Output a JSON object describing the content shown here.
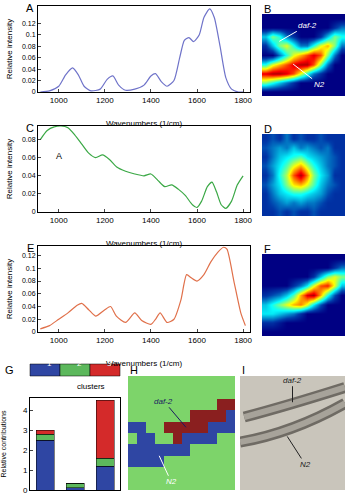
{
  "chart_data": [
    {
      "type": "line",
      "title": "A",
      "color": "#6f73c9",
      "x": [
        920,
        960,
        1000,
        1030,
        1060,
        1085,
        1110,
        1140,
        1180,
        1210,
        1235,
        1260,
        1290,
        1330,
        1370,
        1400,
        1420,
        1445,
        1470,
        1500,
        1525,
        1545,
        1565,
        1585,
        1610,
        1630,
        1655,
        1675,
        1700,
        1725,
        1750,
        1780,
        1800
      ],
      "values": [
        0,
        0.002,
        0.01,
        0.03,
        0.042,
        0.03,
        0.01,
        0.002,
        0.005,
        0.022,
        0.028,
        0.012,
        0.003,
        0.005,
        0.012,
        0.028,
        0.032,
        0.018,
        0.01,
        0.02,
        0.06,
        0.09,
        0.095,
        0.088,
        0.1,
        0.13,
        0.145,
        0.13,
        0.08,
        0.025,
        0.005,
        0,
        0
      ],
      "xlabel": "Wavenumbers (1/cm)",
      "ylabel": "Relative intensity",
      "xlim": [
        910,
        1830
      ],
      "ylim": [
        0,
        0.15
      ],
      "xticks": [
        1000,
        1200,
        1400,
        1600,
        1800
      ],
      "yticks": [
        0,
        0.02,
        0.04,
        0.06,
        0.08,
        0.1,
        0.12
      ],
      "grid": false
    },
    {
      "type": "heatmap",
      "title": "B",
      "tick_labels": false,
      "zlim": [
        0,
        1
      ],
      "labels": [
        "daf-2",
        "N2"
      ],
      "z": [
        [
          0,
          0,
          0,
          0,
          0,
          0,
          0,
          0,
          0,
          0,
          0,
          0
        ],
        [
          0,
          0,
          0,
          0,
          0,
          0,
          0,
          0,
          0,
          0,
          0.1,
          0.2
        ],
        [
          0.3,
          0.5,
          0.4,
          0.2,
          0.1,
          0,
          0,
          0,
          0.1,
          0.3,
          0.5,
          0.4
        ],
        [
          0.1,
          0.3,
          0.5,
          0.6,
          0.4,
          0.2,
          0.2,
          0.4,
          0.6,
          0.7,
          0.5,
          0.2
        ],
        [
          0,
          0,
          0.2,
          0.4,
          0.6,
          0.7,
          0.8,
          0.9,
          0.8,
          0.5,
          0.2,
          0
        ],
        [
          0.4,
          0.6,
          0.7,
          0.8,
          0.9,
          0.95,
          0.95,
          0.8,
          0.5,
          0.2,
          0,
          0
        ],
        [
          0.9,
          0.95,
          0.95,
          0.9,
          0.8,
          0.6,
          0.4,
          0.2,
          0.1,
          0,
          0,
          0
        ],
        [
          0.5,
          0.4,
          0.3,
          0.2,
          0.1,
          0,
          0,
          0,
          0,
          0,
          0,
          0
        ],
        [
          0,
          0,
          0,
          0,
          0,
          0,
          0,
          0,
          0,
          0,
          0,
          0
        ]
      ]
    },
    {
      "type": "line",
      "title": "C",
      "color": "#3aa845",
      "x": [
        920,
        950,
        980,
        1010,
        1040,
        1070,
        1100,
        1130,
        1160,
        1190,
        1220,
        1250,
        1290,
        1330,
        1370,
        1400,
        1430,
        1460,
        1490,
        1520,
        1550,
        1580,
        1600,
        1620,
        1645,
        1665,
        1685,
        1705,
        1725,
        1750,
        1775,
        1800
      ],
      "values": [
        0.08,
        0.09,
        0.094,
        0.095,
        0.093,
        0.085,
        0.075,
        0.065,
        0.06,
        0.063,
        0.058,
        0.05,
        0.045,
        0.042,
        0.04,
        0.042,
        0.035,
        0.028,
        0.03,
        0.025,
        0.018,
        0.008,
        0.005,
        0.012,
        0.028,
        0.033,
        0.022,
        0.008,
        0.004,
        0.012,
        0.03,
        0.04
      ],
      "xlabel": "Wavenumbers (1/cm)",
      "ylabel": "Relative intensity",
      "xlim": [
        910,
        1830
      ],
      "ylim": [
        0,
        0.095
      ],
      "xticks": [
        1000,
        1200,
        1400,
        1600,
        1800
      ],
      "yticks": [
        0,
        0.02,
        0.04,
        0.06,
        0.08
      ],
      "grid": false,
      "annotations": [
        {
          "text": "A",
          "x": 1000,
          "y": 0.062
        }
      ]
    },
    {
      "type": "heatmap",
      "title": "D",
      "tick_labels": false,
      "zlim": [
        0,
        1
      ],
      "z": [
        [
          0.1,
          0.15,
          0.1,
          0.2,
          0.1,
          0.15,
          0.1,
          0.1,
          0.15,
          0.1,
          0.1,
          0.1
        ],
        [
          0.15,
          0.2,
          0.25,
          0.2,
          0.3,
          0.2,
          0.25,
          0.2,
          0.15,
          0.2,
          0.1,
          0.1
        ],
        [
          0.1,
          0.2,
          0.3,
          0.35,
          0.4,
          0.45,
          0.35,
          0.3,
          0.25,
          0.2,
          0.15,
          0.1
        ],
        [
          0.15,
          0.25,
          0.35,
          0.45,
          0.6,
          0.7,
          0.55,
          0.4,
          0.3,
          0.2,
          0.15,
          0.1
        ],
        [
          0.1,
          0.2,
          0.4,
          0.55,
          0.8,
          0.95,
          0.75,
          0.5,
          0.35,
          0.25,
          0.1,
          0.1
        ],
        [
          0.15,
          0.25,
          0.35,
          0.5,
          0.65,
          0.7,
          0.6,
          0.45,
          0.3,
          0.2,
          0.15,
          0.1
        ],
        [
          0.1,
          0.2,
          0.3,
          0.35,
          0.4,
          0.4,
          0.35,
          0.3,
          0.25,
          0.15,
          0.1,
          0.1
        ],
        [
          0.1,
          0.15,
          0.2,
          0.25,
          0.2,
          0.25,
          0.2,
          0.2,
          0.15,
          0.1,
          0.1,
          0.1
        ],
        [
          0.1,
          0.1,
          0.15,
          0.1,
          0.15,
          0.1,
          0.1,
          0.15,
          0.1,
          0.1,
          0.1,
          0.1
        ]
      ]
    },
    {
      "type": "line",
      "title": "E",
      "color": "#e0704a",
      "x": [
        920,
        960,
        1000,
        1040,
        1080,
        1100,
        1130,
        1160,
        1200,
        1225,
        1250,
        1290,
        1330,
        1360,
        1400,
        1420,
        1440,
        1470,
        1500,
        1530,
        1555,
        1575,
        1600,
        1630,
        1660,
        1690,
        1715,
        1730,
        1760,
        1790,
        1810
      ],
      "values": [
        0.005,
        0.01,
        0.02,
        0.03,
        0.042,
        0.045,
        0.035,
        0.025,
        0.035,
        0.04,
        0.025,
        0.015,
        0.03,
        0.018,
        0.012,
        0.02,
        0.03,
        0.015,
        0.02,
        0.05,
        0.09,
        0.085,
        0.08,
        0.09,
        0.11,
        0.125,
        0.133,
        0.13,
        0.08,
        0.03,
        0.01
      ],
      "xlabel": "Wavenumbers (1/cm)",
      "ylabel": "Relative intensity",
      "xlim": [
        910,
        1830
      ],
      "ylim": [
        0,
        0.135
      ],
      "xticks": [
        1000,
        1200,
        1400,
        1600,
        1800
      ],
      "yticks": [
        0,
        0.02,
        0.04,
        0.06,
        0.08,
        0.1,
        0.12
      ],
      "grid": false
    },
    {
      "type": "heatmap",
      "title": "F",
      "tick_labels": false,
      "zlim": [
        0,
        1
      ],
      "z": [
        [
          0,
          0,
          0,
          0,
          0,
          0,
          0,
          0,
          0,
          0,
          0,
          0
        ],
        [
          0,
          0,
          0,
          0,
          0,
          0,
          0,
          0,
          0,
          0,
          0.1,
          0.2
        ],
        [
          0,
          0,
          0,
          0,
          0,
          0,
          0,
          0.1,
          0.3,
          0.5,
          0.6,
          0.5
        ],
        [
          0,
          0,
          0,
          0,
          0.1,
          0.2,
          0.35,
          0.6,
          0.8,
          0.85,
          0.6,
          0.3
        ],
        [
          0.1,
          0.15,
          0.2,
          0.3,
          0.45,
          0.7,
          0.9,
          0.95,
          0.7,
          0.4,
          0.15,
          0
        ],
        [
          0.3,
          0.4,
          0.5,
          0.6,
          0.7,
          0.75,
          0.6,
          0.35,
          0.15,
          0,
          0,
          0
        ],
        [
          0.35,
          0.35,
          0.3,
          0.25,
          0.2,
          0.1,
          0,
          0,
          0,
          0,
          0,
          0
        ],
        [
          0.1,
          0.1,
          0.05,
          0,
          0,
          0,
          0,
          0,
          0,
          0,
          0,
          0
        ],
        [
          0,
          0,
          0,
          0,
          0,
          0,
          0,
          0,
          0,
          0,
          0,
          0
        ]
      ]
    },
    {
      "type": "bar",
      "title": "G",
      "stacked": true,
      "legend": "top",
      "legend_title": "clusters",
      "ylabel": "Relative contributions",
      "tick_labels": "y",
      "categories": [
        null,
        null,
        null
      ],
      "series": [
        {
          "name": "1",
          "color": "#2f46a3",
          "values": [
            2.5,
            0.12,
            1.2
          ]
        },
        {
          "name": "2",
          "color": "#5cb85c",
          "values": [
            0.28,
            0.22,
            0.4
          ]
        },
        {
          "name": "3",
          "color": "#d42a2a",
          "values": [
            0.22,
            0,
            2.9
          ]
        }
      ],
      "ylim": [
        0,
        4.6
      ],
      "yticks": [
        0,
        1,
        2,
        3,
        4
      ],
      "grid": false
    },
    {
      "type": "heatmap",
      "title": "H",
      "tick_labels": false,
      "zlim": [
        1,
        3
      ],
      "colors": [
        "#2f46a3",
        "#7dd46a",
        "#8a1f1f"
      ],
      "labels": [
        "daf-2",
        "N2"
      ],
      "z": [
        [
          2,
          2,
          2,
          2,
          2,
          2,
          2,
          2,
          2,
          2,
          2,
          2
        ],
        [
          2,
          2,
          2,
          2,
          2,
          2,
          2,
          2,
          2,
          2,
          2,
          2
        ],
        [
          2,
          2,
          2,
          2,
          2,
          2,
          2,
          2,
          2,
          2,
          3,
          3
        ],
        [
          2,
          2,
          2,
          2,
          2,
          2,
          2,
          3,
          3,
          3,
          3,
          1
        ],
        [
          1,
          1,
          2,
          2,
          3,
          3,
          3,
          3,
          3,
          1,
          1,
          1
        ],
        [
          2,
          1,
          1,
          2,
          2,
          3,
          1,
          1,
          1,
          1,
          2,
          2
        ],
        [
          1,
          1,
          1,
          1,
          1,
          1,
          1,
          2,
          2,
          2,
          2,
          2
        ],
        [
          1,
          1,
          1,
          1,
          2,
          2,
          2,
          2,
          2,
          2,
          2,
          2
        ],
        [
          2,
          2,
          2,
          2,
          2,
          2,
          2,
          2,
          2,
          2,
          2,
          2
        ],
        [
          2,
          2,
          2,
          2,
          2,
          2,
          2,
          2,
          2,
          2,
          2,
          2
        ]
      ]
    },
    {
      "type": "image",
      "title": "I",
      "tick_labels": false,
      "labels": [
        "daf-2",
        "N2"
      ]
    }
  ]
}
